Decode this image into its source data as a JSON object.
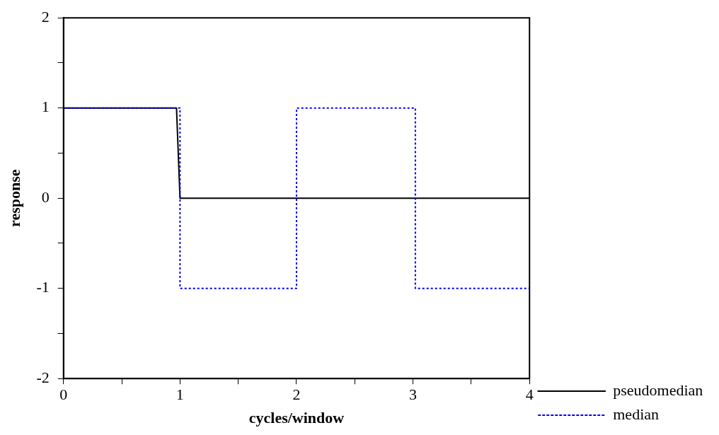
{
  "chart_data": {
    "type": "line",
    "xlabel": "cycles/window",
    "ylabel": "response",
    "xlim": [
      0,
      4
    ],
    "ylim": [
      -2,
      2
    ],
    "xticks": [
      0,
      {
        "value": 0.5,
        "label": null
      },
      1,
      {
        "value": 1.5,
        "label": null
      },
      2,
      {
        "value": 2.5,
        "label": null
      },
      3,
      {
        "value": 3.5,
        "label": null
      },
      4
    ],
    "yticks": [
      -2,
      {
        "value": -1.5,
        "label": null
      },
      -1,
      {
        "value": -0.5,
        "label": null
      },
      0,
      {
        "value": 0.5,
        "label": null
      },
      1,
      {
        "value": 1.5,
        "label": null
      },
      2
    ],
    "grid": false,
    "legend": "bottom right",
    "marker": "none",
    "series": [
      {
        "name": "pseudomedian",
        "color": "#000000",
        "line_style": "solid",
        "x": [
          0,
          0.97,
          1,
          4
        ],
        "values": [
          1,
          1,
          0,
          0
        ]
      },
      {
        "name": "median",
        "color": "#0000ff",
        "line_style": "dotted",
        "x": [
          0,
          1,
          1,
          2,
          2,
          3.02,
          3.02,
          4
        ],
        "values": [
          1,
          1,
          -1,
          -1,
          1,
          1,
          -1,
          -1
        ]
      }
    ]
  }
}
